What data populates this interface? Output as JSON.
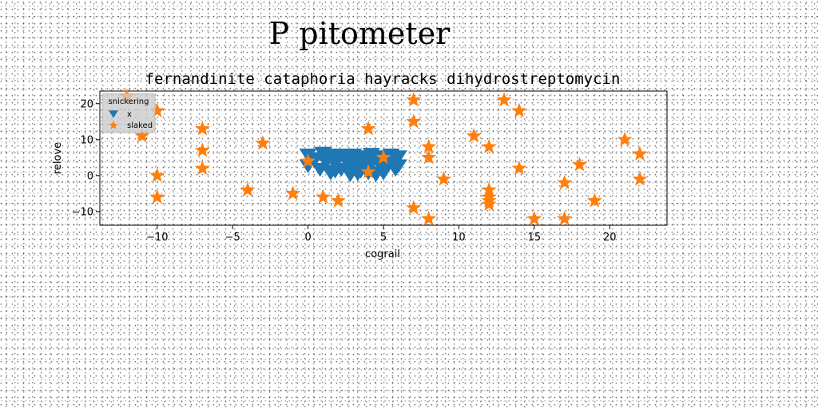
{
  "figure": {
    "suptitle": "P pitometer"
  },
  "chart_data": {
    "type": "scatter",
    "title": "fernandinite cataphoria hayracks dihydrostreptomycin",
    "xlabel": "cograil",
    "ylabel": "relove",
    "xlim": [
      -13.8,
      23.8
    ],
    "ylim": [
      -13.8,
      23.5
    ],
    "xticks": [
      -10,
      -5,
      0,
      5,
      10,
      15,
      20
    ],
    "xtick_labels": [
      "−10",
      "−5",
      "0",
      "5",
      "10",
      "15",
      "20"
    ],
    "yticks": [
      -10,
      0,
      10,
      20
    ],
    "ytick_labels": [
      "−10",
      "0",
      "10",
      "20"
    ],
    "grid": false,
    "legend": {
      "title": "snickering",
      "placement": "top-left"
    },
    "series": [
      {
        "name": "x",
        "marker": "triangle-down",
        "color": "#1f77b4",
        "points": [
          [
            0,
            6
          ],
          [
            0,
            3
          ],
          [
            0.5,
            5
          ],
          [
            0.8,
            2
          ],
          [
            1,
            6.5
          ],
          [
            1.2,
            4
          ],
          [
            1.5,
            1
          ],
          [
            1.5,
            6
          ],
          [
            1.8,
            3.5
          ],
          [
            2,
            5.5
          ],
          [
            2.2,
            2
          ],
          [
            2.5,
            4.5
          ],
          [
            2.5,
            6
          ],
          [
            2.8,
            0.5
          ],
          [
            3,
            3
          ],
          [
            3,
            6
          ],
          [
            3.2,
            4
          ],
          [
            3.5,
            1.5
          ],
          [
            3.5,
            5.5
          ],
          [
            3.8,
            3
          ],
          [
            4,
            5
          ],
          [
            4,
            1
          ],
          [
            4.2,
            3.5
          ],
          [
            4.5,
            5.5
          ],
          [
            4.5,
            0.5
          ],
          [
            4.8,
            3
          ],
          [
            5,
            5
          ],
          [
            5,
            1
          ],
          [
            5.2,
            2.5
          ],
          [
            5.5,
            6
          ],
          [
            5.5,
            4
          ],
          [
            5.8,
            2
          ],
          [
            6,
            5.5
          ],
          [
            6,
            3
          ],
          [
            4.2,
            6.2
          ],
          [
            2.8,
            2.5
          ],
          [
            1.8,
            1.5
          ],
          [
            3.3,
            0.8
          ]
        ]
      },
      {
        "name": "slaked",
        "marker": "star",
        "color": "#ff7f0e",
        "points": [
          [
            -12,
            22
          ],
          [
            -10,
            18
          ],
          [
            -11,
            11
          ],
          [
            -10,
            0
          ],
          [
            -10,
            -6
          ],
          [
            -7,
            13
          ],
          [
            -7,
            7
          ],
          [
            -7,
            2
          ],
          [
            -4,
            -4
          ],
          [
            -3,
            9
          ],
          [
            -1,
            -5
          ],
          [
            0,
            4
          ],
          [
            1,
            -6
          ],
          [
            2,
            -7
          ],
          [
            4,
            13
          ],
          [
            4,
            1
          ],
          [
            5,
            5
          ],
          [
            7,
            21
          ],
          [
            7,
            15
          ],
          [
            7,
            -9
          ],
          [
            8,
            8
          ],
          [
            8,
            5
          ],
          [
            8,
            -12
          ],
          [
            9,
            -1
          ],
          [
            11,
            11
          ],
          [
            12,
            8
          ],
          [
            12,
            -4
          ],
          [
            12,
            -6
          ],
          [
            12,
            -7
          ],
          [
            12,
            -8
          ],
          [
            13,
            21
          ],
          [
            14,
            18
          ],
          [
            14,
            2
          ],
          [
            15,
            -12
          ],
          [
            17,
            -2
          ],
          [
            17,
            -12
          ],
          [
            18,
            3
          ],
          [
            19,
            -7
          ],
          [
            21,
            10
          ],
          [
            22,
            6
          ],
          [
            22,
            -1
          ]
        ]
      }
    ]
  },
  "colors": {
    "series_x": "#1f77b4",
    "series_slaked": "#ff7f0e",
    "legend_bg": "#cccccc"
  }
}
